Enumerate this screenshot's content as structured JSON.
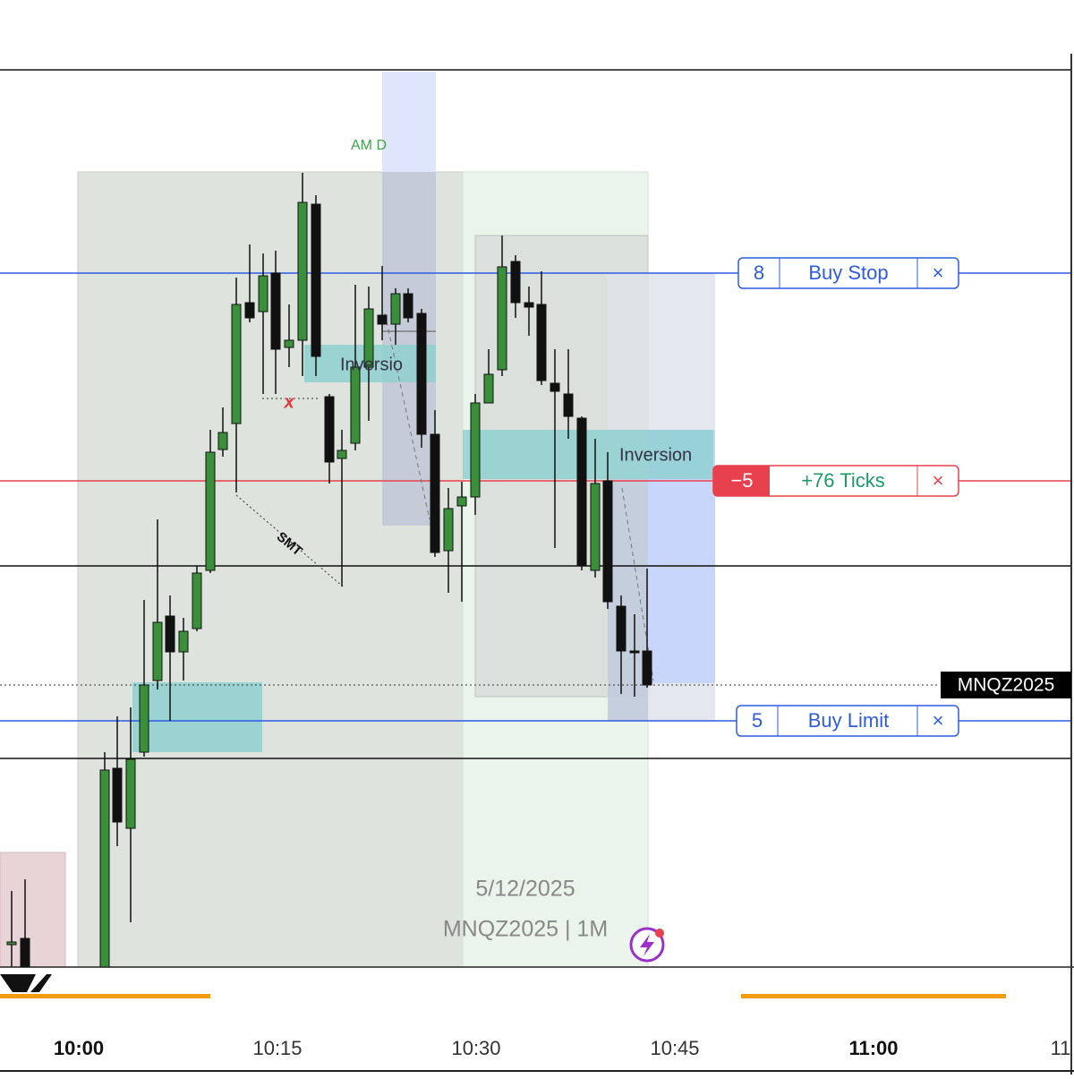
{
  "annotations": {
    "session": "AM D",
    "inversion_left": "Inversio",
    "inversion_right": "Inversion",
    "smt": "SMT",
    "mark": "x"
  },
  "orders": [
    {
      "qty": "8",
      "label": "Buy Stop",
      "close": "×"
    },
    {
      "qty": "−5",
      "label": "+76 Ticks",
      "close": "×"
    },
    {
      "qty": "5",
      "label": "Buy Limit",
      "close": "×"
    }
  ],
  "symbol_tag": "MNQZ2025",
  "watermark": {
    "date": "5/12/2025",
    "symbol": "MNQZ2025 | 1M"
  },
  "time_axis": [
    "10:00",
    "10:15",
    "10:30",
    "10:45",
    "11:00",
    "11"
  ]
}
